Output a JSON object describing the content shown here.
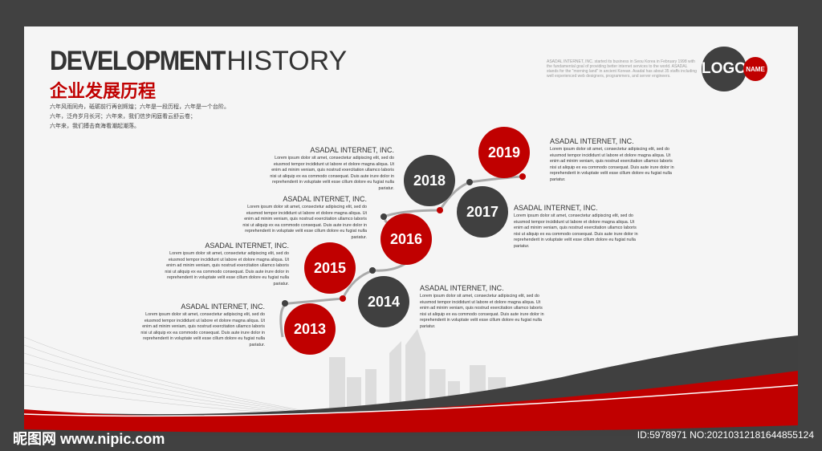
{
  "title": {
    "bold": "DEVELOPMENT",
    "light": "HISTORY",
    "chinese": "企业发展历程"
  },
  "intro": [
    "六年风雨同舟，砥砺前行再创辉煌；六年是一段历程，六年是一个台阶。",
    "六年，泛舟岁月长河；六年来，我们信步闲庭看云舒云卷；",
    "六年来，我们搏击商海看潮起潮落。"
  ],
  "about": "ASADAL INTERNET, INC. started its business in Seou Korea in February 1998 with the fundamental goal of providing better internet services to the world. ASADAL stands for the \"morning land\" in ancient Korean. Asadal has about 35 staffs including well experienced web designers, programmers, and server engineers.",
  "logo": {
    "main": "LOGO",
    "name": "NAME"
  },
  "company": "ASADAL INTERNET, INC.",
  "lorem": "Lorem ipsum dolor sit amet, consectetur adipiscing elit, sed do eiusmod tempor incididunt ut labore et dolore magna aliqua. Ut enim ad minim veniam, quis nostrud exercitation ullamco laboris nisi ut aliquip ex ea commodo consequat. Duis aute irure dolor in reprehenderit in voluptate velit esse cillum dolore eu fugiat nulla pariatur.",
  "years": [
    {
      "year": "2013",
      "color": "red"
    },
    {
      "year": "2014",
      "color": "dark"
    },
    {
      "year": "2015",
      "color": "red"
    },
    {
      "year": "2016",
      "color": "red"
    },
    {
      "year": "2017",
      "color": "dark"
    },
    {
      "year": "2018",
      "color": "dark"
    },
    {
      "year": "2019",
      "color": "red"
    }
  ],
  "colors": {
    "red": "#c00000",
    "dark": "#404040",
    "frame": "#414141"
  },
  "watermark": {
    "site": "昵图网 www.nipic.com",
    "id": "ID:5978971 NO:20210312181644855124"
  }
}
